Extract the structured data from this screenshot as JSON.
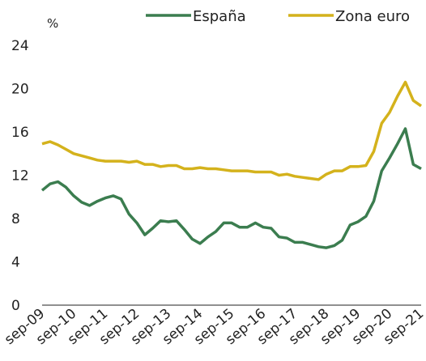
{
  "chart_data": {
    "type": "line",
    "y_label": "%",
    "categories": [
      "sep-09",
      null,
      null,
      null,
      "sep-10",
      null,
      null,
      null,
      "sep-11",
      null,
      null,
      null,
      "sep-12",
      null,
      null,
      null,
      "sep-13",
      null,
      null,
      null,
      "sep-14",
      null,
      null,
      null,
      "sep-15",
      null,
      null,
      null,
      "sep-16",
      null,
      null,
      null,
      "sep-17",
      null,
      null,
      null,
      "sep-18",
      null,
      null,
      null,
      "sep-19",
      null,
      null,
      null,
      "sep-20",
      null,
      null,
      null,
      "sep-21"
    ],
    "series": [
      {
        "name": "España",
        "color": "#3b7d4f",
        "values": [
          10.6,
          11.2,
          11.4,
          10.9,
          10.1,
          9.5,
          9.2,
          9.6,
          9.9,
          10.1,
          9.8,
          8.4,
          7.6,
          6.5,
          7.1,
          7.8,
          7.7,
          7.8,
          7.0,
          6.1,
          5.7,
          6.3,
          6.8,
          7.6,
          7.6,
          7.2,
          7.2,
          7.6,
          7.2,
          7.1,
          6.3,
          6.2,
          5.8,
          5.8,
          5.6,
          5.4,
          5.3,
          5.5,
          6.0,
          7.4,
          7.7,
          8.2,
          9.6,
          12.4,
          13.6,
          14.9,
          16.3,
          13.0,
          12.6
        ]
      },
      {
        "name": "Zona euro",
        "color": "#d4b21c",
        "values": [
          14.9,
          15.1,
          14.8,
          14.4,
          14.0,
          13.8,
          13.6,
          13.4,
          13.3,
          13.3,
          13.3,
          13.2,
          13.3,
          13.0,
          13.0,
          12.8,
          12.9,
          12.9,
          12.6,
          12.6,
          12.7,
          12.6,
          12.6,
          12.5,
          12.4,
          12.4,
          12.4,
          12.3,
          12.3,
          12.3,
          12.0,
          12.1,
          11.9,
          11.8,
          11.7,
          11.6,
          12.1,
          12.4,
          12.4,
          12.8,
          12.8,
          12.9,
          14.2,
          16.8,
          17.8,
          19.3,
          20.6,
          18.9,
          18.4
        ]
      }
    ],
    "ylim": [
      0,
      24
    ],
    "yticks": [
      0,
      4,
      8,
      12,
      16,
      20,
      24
    ],
    "grid": false,
    "legend": "top"
  }
}
